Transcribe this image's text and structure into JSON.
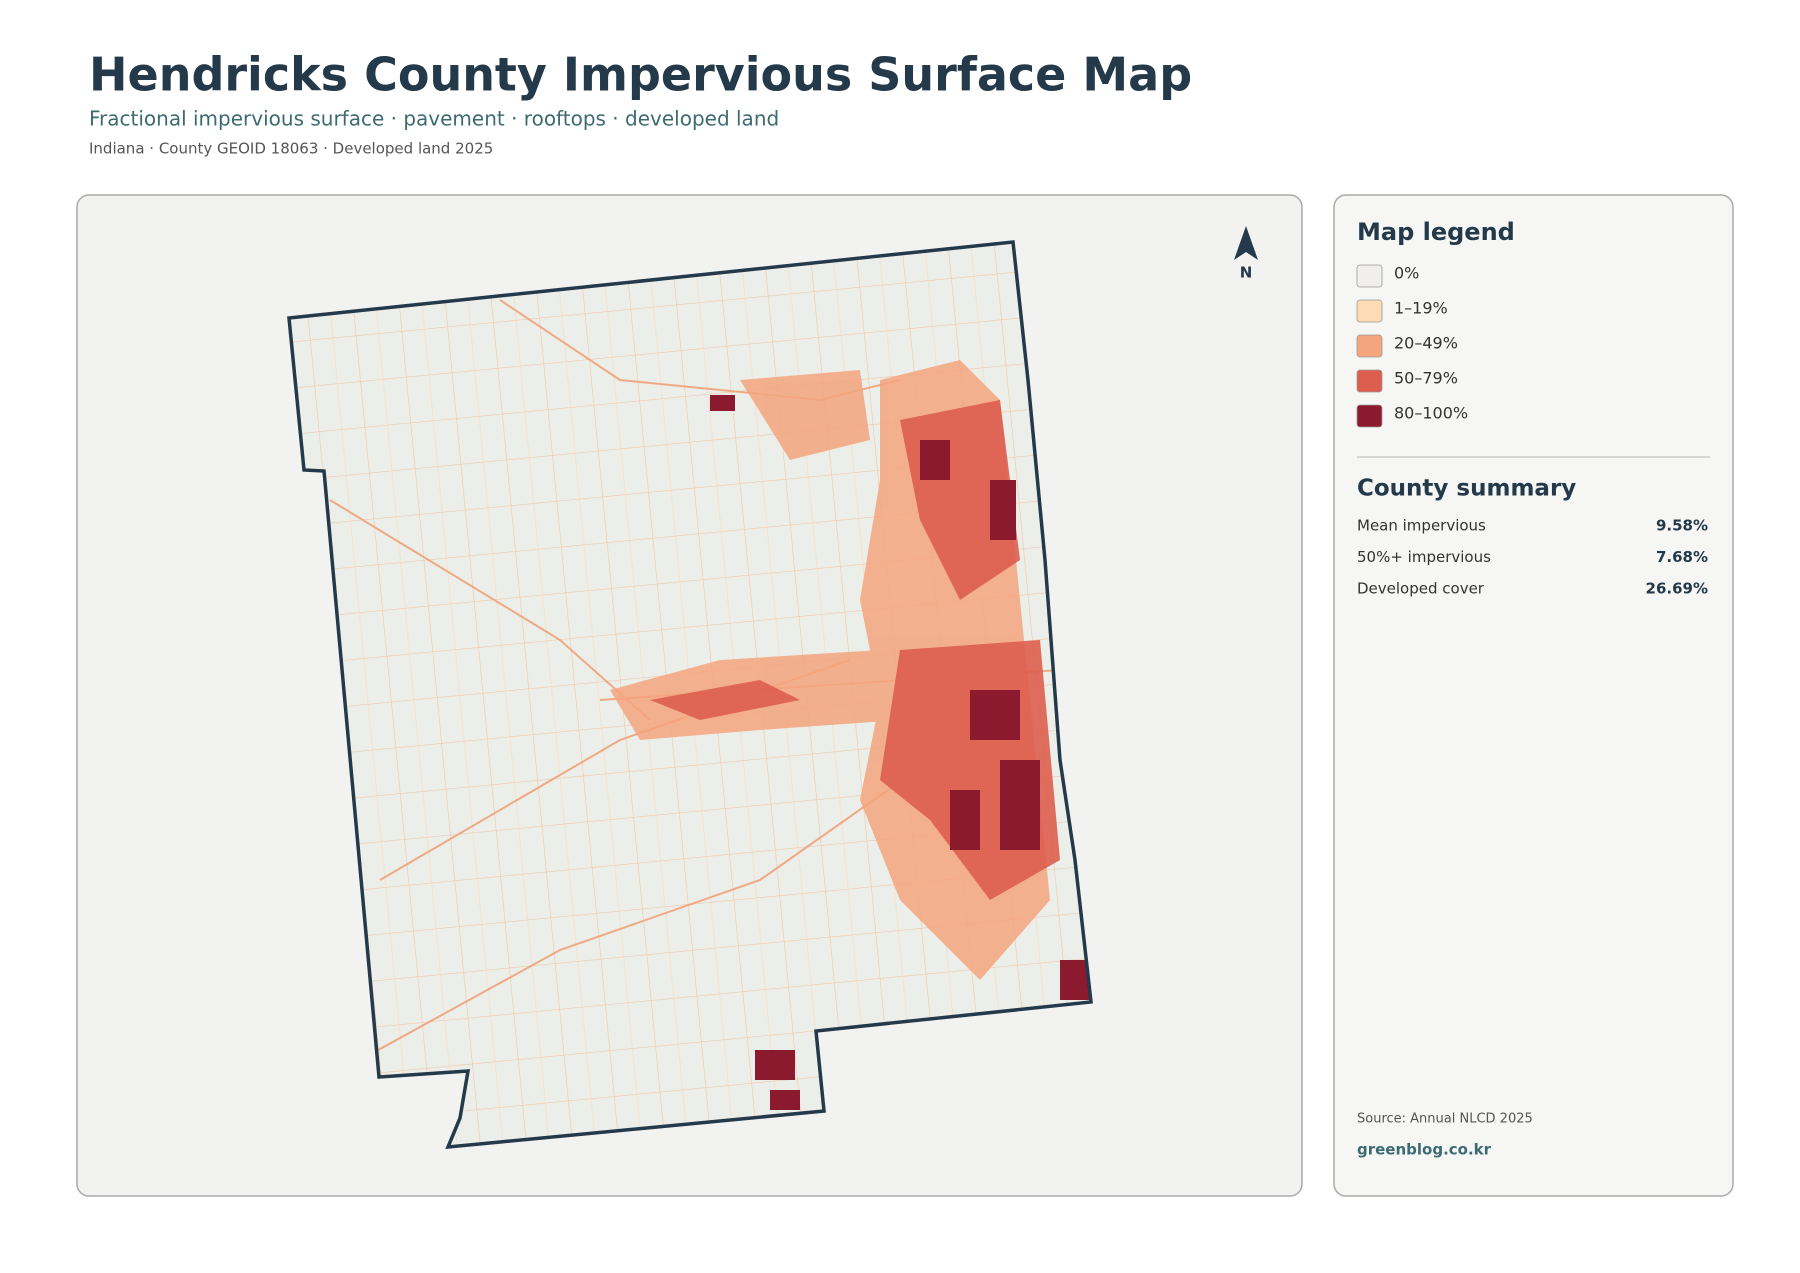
{
  "header": {
    "title": "Hendricks County Impervious Surface Map",
    "subtitle": "Fractional impervious surface · pavement · rooftops · developed land",
    "meta": "Indiana · County GEOID 18063 · Developed land 2025"
  },
  "map": {
    "north_label": "N"
  },
  "legend": {
    "title": "Map legend",
    "items": [
      {
        "label": "0%",
        "color": "#f0efeb"
      },
      {
        "label": "1–19%",
        "color": "#fddcb5"
      },
      {
        "label": "20–49%",
        "color": "#f4a57e"
      },
      {
        "label": "50–79%",
        "color": "#dd5e4e"
      },
      {
        "label": "80–100%",
        "color": "#8b1a2e"
      }
    ]
  },
  "summary": {
    "title": "County summary",
    "rows": [
      {
        "label": "Mean impervious",
        "value": "9.58%"
      },
      {
        "label": "50%+ impervious",
        "value": "7.68%"
      },
      {
        "label": "Developed cover",
        "value": "26.69%"
      }
    ]
  },
  "footer": {
    "source": "Source: Annual NLCD 2025",
    "site": "greenblog.co.kr"
  }
}
